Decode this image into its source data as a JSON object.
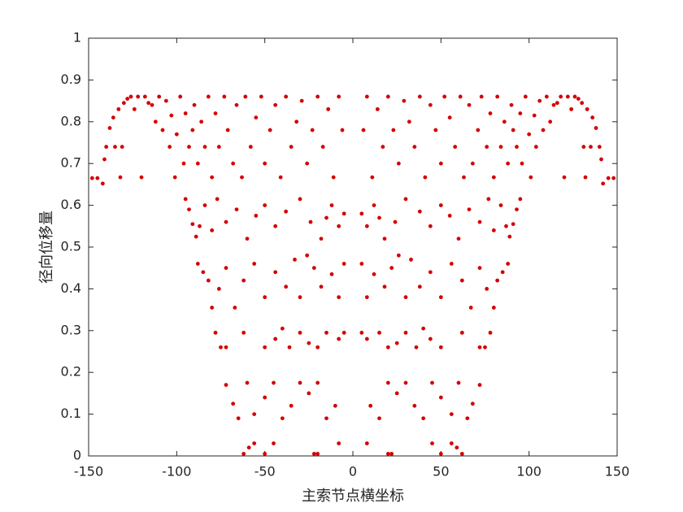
{
  "chart_data": {
    "type": "scatter",
    "xlabel": "主索节点横坐标",
    "ylabel": "径向位移量",
    "xlim": [
      -150,
      150
    ],
    "xticks": [
      -150,
      -100,
      -50,
      0,
      50,
      100,
      150
    ],
    "ylim": [
      0,
      1
    ],
    "yticks": [
      0,
      0.1,
      0.2,
      0.3,
      0.4,
      0.5,
      0.6,
      0.7,
      0.8,
      0.9,
      1
    ],
    "color": "#d40000",
    "x": [
      -148,
      -145,
      -142,
      -141,
      -140,
      -138,
      -136,
      -135,
      -133,
      -132,
      -131,
      -130,
      -128,
      -126,
      -124,
      -122,
      -120,
      -118,
      -116,
      -114,
      -112,
      -110,
      -108,
      -106,
      -104,
      -103,
      -101,
      -100,
      -98,
      -96,
      -95,
      -93,
      -91,
      -90,
      -88,
      -86,
      -84,
      -82,
      -80,
      -78,
      -76,
      -73,
      -71,
      -68,
      -66,
      -63,
      -61,
      -58,
      -55,
      -52,
      -50,
      -47,
      -44,
      -41,
      -38,
      -35,
      -32,
      -29,
      -26,
      -23,
      -20,
      -17,
      -14,
      -11,
      -8,
      -6,
      -95,
      -93,
      -91,
      -89,
      -87,
      -84,
      -80,
      -77,
      -72,
      -66,
      -60,
      -55,
      -50,
      -44,
      -38,
      -30,
      -24,
      -18,
      -15,
      -12,
      -8,
      -5,
      -88,
      -85,
      -82,
      -80,
      -76,
      -72,
      -67,
      -62,
      -56,
      -50,
      -44,
      -38,
      -33,
      -30,
      -26,
      -22,
      -18,
      -12,
      -8,
      -5,
      -78,
      -75,
      -72,
      -62,
      -50,
      -44,
      -40,
      -36,
      -30,
      -25,
      -20,
      -15,
      -8,
      -5,
      -72,
      -68,
      -65,
      -60,
      -56,
      -50,
      -45,
      -40,
      -35,
      -30,
      -25,
      -20,
      -15,
      -10,
      -62,
      -59,
      -56,
      -50,
      -45,
      -22,
      -20,
      -8,
      148,
      145,
      142,
      141,
      140,
      138,
      136,
      135,
      133,
      132,
      131,
      130,
      128,
      126,
      124,
      122,
      120,
      118,
      116,
      114,
      112,
      110,
      108,
      106,
      104,
      103,
      101,
      100,
      98,
      96,
      95,
      93,
      91,
      90,
      88,
      86,
      84,
      82,
      80,
      78,
      76,
      73,
      71,
      68,
      66,
      63,
      61,
      58,
      55,
      52,
      50,
      47,
      44,
      41,
      38,
      35,
      32,
      29,
      26,
      23,
      20,
      17,
      14,
      11,
      8,
      6,
      95,
      93,
      91,
      89,
      87,
      84,
      80,
      77,
      72,
      66,
      60,
      55,
      50,
      44,
      38,
      30,
      24,
      18,
      15,
      12,
      8,
      5,
      88,
      85,
      82,
      80,
      76,
      72,
      67,
      62,
      56,
      50,
      44,
      38,
      33,
      30,
      26,
      22,
      18,
      12,
      8,
      5,
      78,
      75,
      72,
      62,
      50,
      44,
      40,
      36,
      30,
      25,
      20,
      15,
      8,
      5,
      72,
      68,
      65,
      60,
      56,
      50,
      45,
      40,
      35,
      30,
      25,
      20,
      15,
      10,
      62,
      59,
      56,
      50,
      45,
      22,
      20,
      8
    ],
    "values": [
      0.665,
      0.665,
      0.652,
      0.71,
      0.74,
      0.785,
      0.81,
      0.74,
      0.83,
      0.667,
      0.74,
      0.845,
      0.855,
      0.86,
      0.83,
      0.86,
      0.667,
      0.86,
      0.845,
      0.84,
      0.8,
      0.86,
      0.78,
      0.85,
      0.74,
      0.815,
      0.667,
      0.77,
      0.86,
      0.7,
      0.82,
      0.74,
      0.78,
      0.84,
      0.7,
      0.8,
      0.74,
      0.86,
      0.667,
      0.82,
      0.74,
      0.86,
      0.78,
      0.7,
      0.84,
      0.667,
      0.86,
      0.74,
      0.81,
      0.86,
      0.7,
      0.78,
      0.84,
      0.667,
      0.86,
      0.74,
      0.8,
      0.85,
      0.7,
      0.78,
      0.86,
      0.74,
      0.83,
      0.667,
      0.86,
      0.78,
      0.615,
      0.59,
      0.555,
      0.525,
      0.55,
      0.6,
      0.54,
      0.615,
      0.56,
      0.59,
      0.52,
      0.575,
      0.6,
      0.55,
      0.585,
      0.615,
      0.56,
      0.52,
      0.57,
      0.6,
      0.55,
      0.58,
      0.46,
      0.44,
      0.42,
      0.355,
      0.4,
      0.45,
      0.355,
      0.42,
      0.46,
      0.38,
      0.44,
      0.405,
      0.47,
      0.38,
      0.48,
      0.45,
      0.405,
      0.435,
      0.38,
      0.46,
      0.295,
      0.26,
      0.26,
      0.295,
      0.26,
      0.28,
      0.305,
      0.26,
      0.295,
      0.27,
      0.26,
      0.295,
      0.28,
      0.295,
      0.17,
      0.125,
      0.09,
      0.175,
      0.1,
      0.14,
      0.175,
      0.09,
      0.12,
      0.175,
      0.15,
      0.175,
      0.09,
      0.12,
      0.005,
      0.02,
      0.03,
      0.005,
      0.03,
      0.005,
      0.005,
      0.03,
      0.665,
      0.665,
      0.652,
      0.71,
      0.74,
      0.785,
      0.81,
      0.74,
      0.83,
      0.667,
      0.74,
      0.845,
      0.855,
      0.86,
      0.83,
      0.86,
      0.667,
      0.86,
      0.845,
      0.84,
      0.8,
      0.86,
      0.78,
      0.85,
      0.74,
      0.815,
      0.667,
      0.77,
      0.86,
      0.7,
      0.82,
      0.74,
      0.78,
      0.84,
      0.7,
      0.8,
      0.74,
      0.86,
      0.667,
      0.82,
      0.74,
      0.86,
      0.78,
      0.7,
      0.84,
      0.667,
      0.86,
      0.74,
      0.81,
      0.86,
      0.7,
      0.78,
      0.84,
      0.667,
      0.86,
      0.74,
      0.8,
      0.85,
      0.7,
      0.78,
      0.86,
      0.74,
      0.83,
      0.667,
      0.86,
      0.78,
      0.615,
      0.59,
      0.555,
      0.525,
      0.55,
      0.6,
      0.54,
      0.615,
      0.56,
      0.59,
      0.52,
      0.575,
      0.6,
      0.55,
      0.585,
      0.615,
      0.56,
      0.52,
      0.57,
      0.6,
      0.55,
      0.58,
      0.46,
      0.44,
      0.42,
      0.355,
      0.4,
      0.45,
      0.355,
      0.42,
      0.46,
      0.38,
      0.44,
      0.405,
      0.47,
      0.38,
      0.48,
      0.45,
      0.405,
      0.435,
      0.38,
      0.46,
      0.295,
      0.26,
      0.26,
      0.295,
      0.26,
      0.28,
      0.305,
      0.26,
      0.295,
      0.27,
      0.26,
      0.295,
      0.28,
      0.295,
      0.17,
      0.125,
      0.09,
      0.175,
      0.1,
      0.14,
      0.175,
      0.09,
      0.12,
      0.175,
      0.15,
      0.175,
      0.09,
      0.12,
      0.005,
      0.02,
      0.03,
      0.005,
      0.03,
      0.005,
      0.005,
      0.03
    ]
  }
}
